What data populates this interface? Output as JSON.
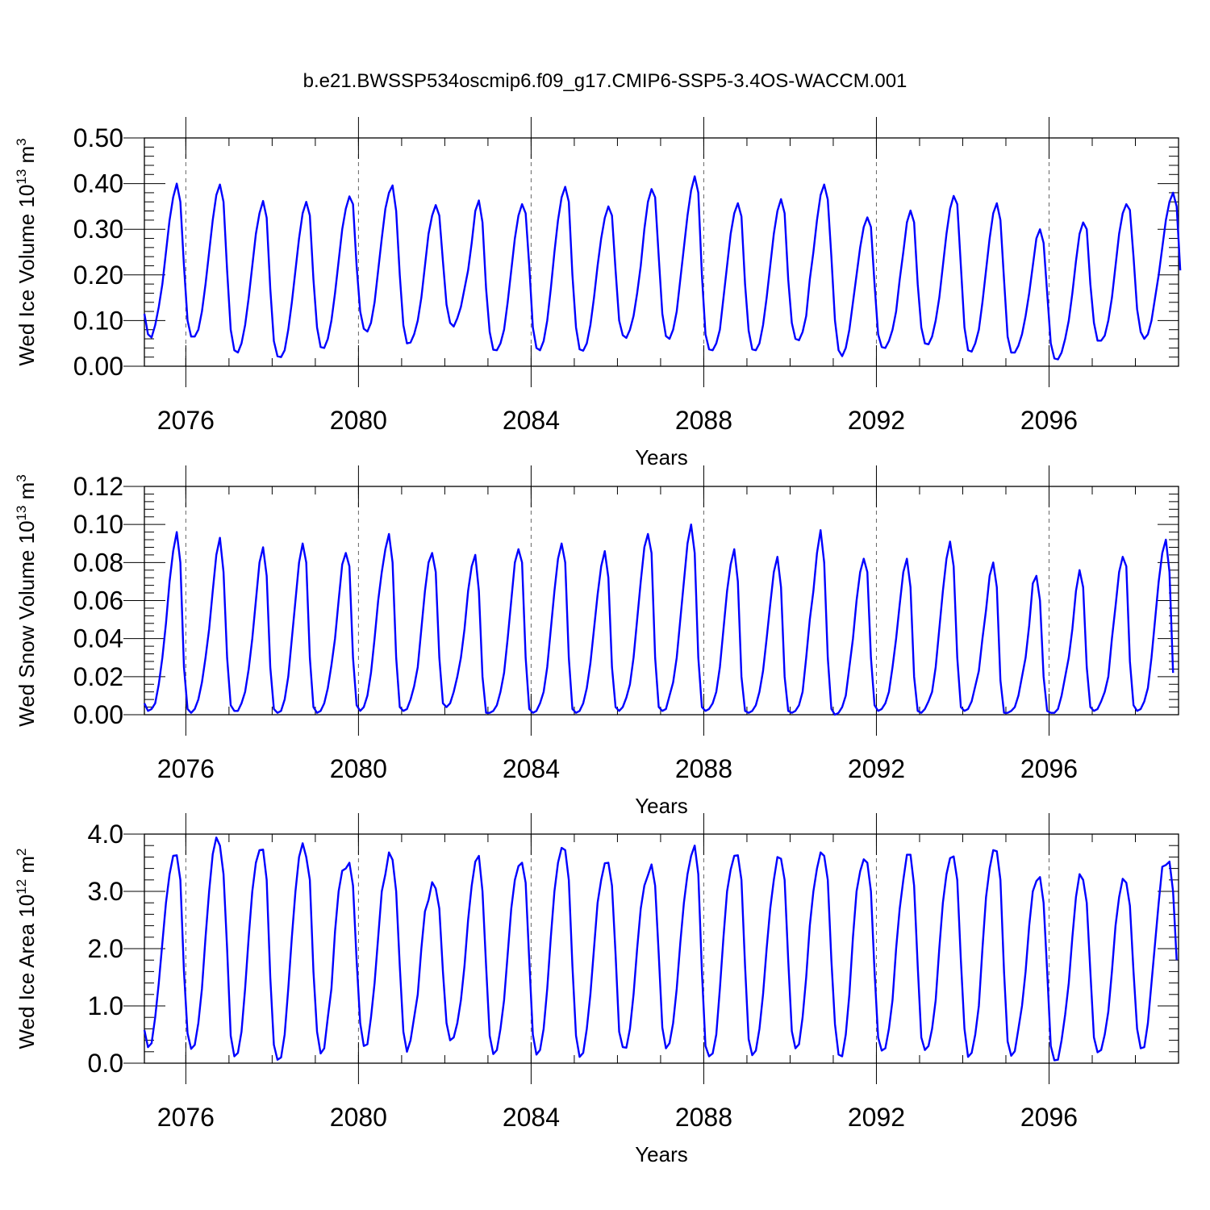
{
  "title": "b.e21.BWSSP534oscmip6.f09_g17.CMIP6-SSP5-3.4OS-WACCM.001",
  "colors": {
    "line": "#0000ff",
    "axis": "#000000",
    "refline": "#666666",
    "background": "#ffffff"
  },
  "chart_data": [
    {
      "type": "line",
      "ylabel": {
        "prefix": "Wed Ice Volume 10",
        "exponent": "13",
        "unit": " m",
        "unit_exponent": "3"
      },
      "xlabel": "Years",
      "xlim": [
        2075.04,
        2099.0
      ],
      "ylim": [
        0.0,
        0.5
      ],
      "x_ticks": [
        2076,
        2080,
        2084,
        2088,
        2092,
        2096
      ],
      "y_ticks": [
        "0.00",
        "0.10",
        "0.20",
        "0.30",
        "0.40",
        "0.50"
      ],
      "y_tick_values": [
        0,
        0.1,
        0.2,
        0.3,
        0.4,
        0.5
      ],
      "grid": "dashed vertical lines at labeled years",
      "series": [
        {
          "x_start": 2075.04,
          "x_step_months": 1,
          "values": [
            0.115,
            0.07,
            0.063,
            0.09,
            0.13,
            0.18,
            0.25,
            0.32,
            0.37,
            0.4,
            0.36,
            0.22,
            0.1,
            0.065,
            0.065,
            0.08,
            0.12,
            0.18,
            0.25,
            0.32,
            0.375,
            0.398,
            0.36,
            0.21,
            0.08,
            0.035,
            0.03,
            0.05,
            0.09,
            0.15,
            0.22,
            0.29,
            0.335,
            0.362,
            0.325,
            0.17,
            0.055,
            0.022,
            0.02,
            0.035,
            0.08,
            0.14,
            0.21,
            0.28,
            0.335,
            0.36,
            0.33,
            0.19,
            0.085,
            0.042,
            0.04,
            0.06,
            0.1,
            0.16,
            0.23,
            0.3,
            0.345,
            0.372,
            0.355,
            0.22,
            0.12,
            0.082,
            0.076,
            0.095,
            0.14,
            0.21,
            0.28,
            0.345,
            0.38,
            0.396,
            0.34,
            0.2,
            0.09,
            0.05,
            0.052,
            0.07,
            0.1,
            0.15,
            0.22,
            0.29,
            0.33,
            0.353,
            0.33,
            0.23,
            0.135,
            0.095,
            0.087,
            0.105,
            0.13,
            0.17,
            0.21,
            0.27,
            0.34,
            0.363,
            0.315,
            0.17,
            0.075,
            0.036,
            0.035,
            0.05,
            0.08,
            0.14,
            0.21,
            0.28,
            0.33,
            0.355,
            0.335,
            0.22,
            0.085,
            0.04,
            0.035,
            0.055,
            0.1,
            0.17,
            0.25,
            0.32,
            0.37,
            0.393,
            0.36,
            0.2,
            0.085,
            0.037,
            0.034,
            0.05,
            0.09,
            0.15,
            0.22,
            0.28,
            0.325,
            0.35,
            0.33,
            0.21,
            0.1,
            0.068,
            0.062,
            0.08,
            0.11,
            0.16,
            0.22,
            0.3,
            0.36,
            0.388,
            0.37,
            0.24,
            0.115,
            0.066,
            0.06,
            0.08,
            0.12,
            0.19,
            0.26,
            0.33,
            0.385,
            0.416,
            0.38,
            0.2,
            0.07,
            0.037,
            0.035,
            0.05,
            0.08,
            0.15,
            0.22,
            0.29,
            0.335,
            0.357,
            0.328,
            0.18,
            0.078,
            0.037,
            0.035,
            0.05,
            0.09,
            0.15,
            0.22,
            0.29,
            0.34,
            0.366,
            0.335,
            0.19,
            0.095,
            0.06,
            0.057,
            0.075,
            0.11,
            0.19,
            0.25,
            0.32,
            0.375,
            0.398,
            0.365,
            0.24,
            0.1,
            0.035,
            0.022,
            0.04,
            0.08,
            0.14,
            0.2,
            0.26,
            0.305,
            0.326,
            0.305,
            0.18,
            0.07,
            0.042,
            0.04,
            0.055,
            0.08,
            0.12,
            0.19,
            0.25,
            0.315,
            0.341,
            0.315,
            0.18,
            0.085,
            0.05,
            0.048,
            0.065,
            0.1,
            0.15,
            0.22,
            0.29,
            0.345,
            0.373,
            0.355,
            0.22,
            0.085,
            0.035,
            0.032,
            0.05,
            0.08,
            0.14,
            0.21,
            0.28,
            0.335,
            0.357,
            0.32,
            0.19,
            0.065,
            0.03,
            0.03,
            0.045,
            0.07,
            0.11,
            0.16,
            0.22,
            0.28,
            0.3,
            0.27,
            0.16,
            0.05,
            0.017,
            0.015,
            0.03,
            0.06,
            0.1,
            0.16,
            0.23,
            0.29,
            0.315,
            0.3,
            0.18,
            0.095,
            0.056,
            0.056,
            0.067,
            0.1,
            0.15,
            0.22,
            0.29,
            0.335,
            0.355,
            0.342,
            0.24,
            0.125,
            0.075,
            0.06,
            0.07,
            0.1,
            0.15,
            0.2,
            0.26,
            0.32,
            0.36,
            0.38,
            0.35,
            0.21
          ]
        }
      ]
    },
    {
      "type": "line",
      "ylabel": {
        "prefix": "Wed Snow Volume 10",
        "exponent": "13",
        "unit": " m",
        "unit_exponent": "3"
      },
      "xlabel": "Years",
      "xlim": [
        2075.04,
        2099.0
      ],
      "ylim": [
        0.0,
        0.12
      ],
      "x_ticks": [
        2076,
        2080,
        2084,
        2088,
        2092,
        2096
      ],
      "y_ticks": [
        "0.00",
        "0.02",
        "0.04",
        "0.06",
        "0.08",
        "0.10",
        "0.12"
      ],
      "y_tick_values": [
        0,
        0.02,
        0.04,
        0.06,
        0.08,
        0.1,
        0.12
      ],
      "grid": "dashed vertical lines at labeled years",
      "series": [
        {
          "x_start": 2075.04,
          "x_step_months": 1,
          "values": [
            0.006,
            0.002,
            0.003,
            0.006,
            0.016,
            0.03,
            0.048,
            0.07,
            0.086,
            0.096,
            0.08,
            0.025,
            0.003,
            0.001,
            0.003,
            0.008,
            0.017,
            0.03,
            0.045,
            0.065,
            0.084,
            0.093,
            0.075,
            0.03,
            0.005,
            0.002,
            0.002,
            0.006,
            0.012,
            0.024,
            0.04,
            0.06,
            0.08,
            0.088,
            0.073,
            0.025,
            0.003,
            0.001,
            0.002,
            0.008,
            0.02,
            0.04,
            0.06,
            0.08,
            0.09,
            0.08,
            0.03,
            0.004,
            0.001,
            0.002,
            0.006,
            0.014,
            0.026,
            0.04,
            0.06,
            0.079,
            0.085,
            0.078,
            0.03,
            0.005,
            0.002,
            0.004,
            0.01,
            0.022,
            0.04,
            0.06,
            0.075,
            0.087,
            0.095,
            0.08,
            0.03,
            0.004,
            0.002,
            0.003,
            0.008,
            0.015,
            0.025,
            0.045,
            0.065,
            0.08,
            0.085,
            0.075,
            0.03,
            0.006,
            0.004,
            0.006,
            0.012,
            0.02,
            0.03,
            0.045,
            0.065,
            0.078,
            0.084,
            0.065,
            0.02,
            0.001,
            0.001,
            0.002,
            0.005,
            0.012,
            0.022,
            0.04,
            0.06,
            0.08,
            0.087,
            0.08,
            0.03,
            0.003,
            0.001,
            0.002,
            0.006,
            0.012,
            0.025,
            0.045,
            0.065,
            0.082,
            0.09,
            0.08,
            0.03,
            0.003,
            0.001,
            0.002,
            0.006,
            0.014,
            0.027,
            0.045,
            0.063,
            0.078,
            0.086,
            0.072,
            0.025,
            0.004,
            0.002,
            0.004,
            0.009,
            0.016,
            0.03,
            0.05,
            0.07,
            0.088,
            0.095,
            0.085,
            0.03,
            0.004,
            0.002,
            0.003,
            0.01,
            0.017,
            0.03,
            0.05,
            0.07,
            0.09,
            0.1,
            0.085,
            0.03,
            0.004,
            0.002,
            0.003,
            0.006,
            0.012,
            0.025,
            0.045,
            0.065,
            0.079,
            0.087,
            0.07,
            0.02,
            0.002,
            0.001,
            0.002,
            0.005,
            0.012,
            0.023,
            0.04,
            0.058,
            0.075,
            0.083,
            0.067,
            0.02,
            0.002,
            0.001,
            0.002,
            0.005,
            0.012,
            0.03,
            0.05,
            0.065,
            0.085,
            0.097,
            0.08,
            0.03,
            0.003,
            0.0,
            0.001,
            0.004,
            0.01,
            0.025,
            0.04,
            0.06,
            0.075,
            0.082,
            0.075,
            0.03,
            0.005,
            0.002,
            0.003,
            0.006,
            0.012,
            0.025,
            0.04,
            0.058,
            0.075,
            0.082,
            0.067,
            0.02,
            0.002,
            0.001,
            0.003,
            0.007,
            0.012,
            0.025,
            0.045,
            0.065,
            0.082,
            0.091,
            0.078,
            0.03,
            0.004,
            0.002,
            0.003,
            0.007,
            0.015,
            0.023,
            0.04,
            0.055,
            0.073,
            0.08,
            0.067,
            0.018,
            0.001,
            0.001,
            0.002,
            0.004,
            0.01,
            0.02,
            0.03,
            0.047,
            0.069,
            0.073,
            0.06,
            0.02,
            0.002,
            0.001,
            0.001,
            0.003,
            0.01,
            0.02,
            0.03,
            0.045,
            0.065,
            0.076,
            0.067,
            0.025,
            0.004,
            0.002,
            0.003,
            0.007,
            0.012,
            0.02,
            0.04,
            0.057,
            0.075,
            0.083,
            0.078,
            0.028,
            0.005,
            0.002,
            0.003,
            0.007,
            0.014,
            0.03,
            0.05,
            0.07,
            0.085,
            0.092,
            0.075,
            0.022
          ]
        }
      ]
    },
    {
      "type": "line",
      "ylabel": {
        "prefix": "Wed Ice Area 10",
        "exponent": "12",
        "unit": " m",
        "unit_exponent": "2"
      },
      "xlabel": "Years",
      "xlim": [
        2075.04,
        2099.0
      ],
      "ylim": [
        0.0,
        4.0
      ],
      "x_ticks": [
        2076,
        2080,
        2084,
        2088,
        2092,
        2096
      ],
      "y_ticks": [
        "0.0",
        "1.0",
        "2.0",
        "3.0",
        "4.0"
      ],
      "y_tick_values": [
        0,
        1,
        2,
        3,
        4
      ],
      "grid": "dashed vertical lines at labeled years",
      "series": [
        {
          "x_start": 2075.04,
          "x_step_months": 1,
          "values": [
            0.58,
            0.28,
            0.35,
            0.8,
            1.4,
            2.1,
            2.8,
            3.3,
            3.62,
            3.63,
            3.2,
            1.6,
            0.52,
            0.25,
            0.32,
            0.7,
            1.3,
            2.2,
            3.0,
            3.65,
            3.94,
            3.8,
            3.3,
            2.0,
            0.48,
            0.12,
            0.18,
            0.55,
            1.3,
            2.2,
            3.0,
            3.5,
            3.72,
            3.73,
            3.2,
            1.5,
            0.32,
            0.06,
            0.1,
            0.5,
            1.3,
            2.2,
            3.0,
            3.6,
            3.84,
            3.6,
            3.2,
            1.6,
            0.55,
            0.17,
            0.26,
            0.8,
            1.3,
            2.3,
            3.0,
            3.36,
            3.4,
            3.5,
            3.1,
            1.8,
            0.7,
            0.3,
            0.33,
            0.8,
            1.4,
            2.2,
            3.0,
            3.3,
            3.68,
            3.55,
            3.0,
            1.7,
            0.55,
            0.2,
            0.4,
            0.8,
            1.2,
            2.0,
            2.65,
            2.85,
            3.16,
            3.05,
            2.7,
            1.6,
            0.7,
            0.4,
            0.45,
            0.7,
            1.1,
            1.7,
            2.5,
            3.1,
            3.52,
            3.62,
            3.0,
            1.7,
            0.48,
            0.16,
            0.23,
            0.6,
            1.1,
            1.9,
            2.7,
            3.2,
            3.44,
            3.5,
            3.15,
            1.8,
            0.5,
            0.15,
            0.23,
            0.6,
            1.3,
            2.2,
            3.0,
            3.5,
            3.76,
            3.72,
            3.2,
            1.7,
            0.48,
            0.11,
            0.18,
            0.6,
            1.2,
            2.0,
            2.8,
            3.2,
            3.49,
            3.5,
            3.1,
            1.9,
            0.55,
            0.28,
            0.27,
            0.6,
            1.2,
            2.0,
            2.7,
            3.1,
            3.28,
            3.47,
            3.1,
            1.9,
            0.62,
            0.26,
            0.35,
            0.7,
            1.3,
            2.1,
            2.8,
            3.3,
            3.62,
            3.8,
            3.3,
            1.6,
            0.3,
            0.12,
            0.17,
            0.5,
            1.3,
            2.2,
            3.0,
            3.38,
            3.62,
            3.63,
            3.2,
            1.7,
            0.42,
            0.14,
            0.22,
            0.6,
            1.2,
            2.0,
            2.7,
            3.2,
            3.6,
            3.57,
            3.2,
            1.8,
            0.56,
            0.26,
            0.33,
            0.8,
            1.5,
            2.4,
            3.0,
            3.4,
            3.68,
            3.62,
            3.2,
            1.8,
            0.68,
            0.15,
            0.12,
            0.5,
            1.2,
            2.2,
            3.0,
            3.35,
            3.56,
            3.5,
            3.0,
            1.6,
            0.45,
            0.22,
            0.26,
            0.6,
            1.1,
            2.0,
            2.7,
            3.2,
            3.64,
            3.64,
            3.1,
            1.7,
            0.45,
            0.23,
            0.3,
            0.6,
            1.1,
            2.0,
            2.8,
            3.3,
            3.58,
            3.61,
            3.2,
            1.8,
            0.6,
            0.11,
            0.18,
            0.5,
            1.0,
            2.0,
            2.9,
            3.4,
            3.72,
            3.7,
            3.2,
            1.6,
            0.38,
            0.13,
            0.21,
            0.6,
            1.0,
            1.6,
            2.4,
            3.0,
            3.18,
            3.25,
            2.8,
            1.6,
            0.3,
            0.05,
            0.06,
            0.4,
            0.85,
            1.4,
            2.2,
            2.9,
            3.3,
            3.2,
            2.8,
            1.6,
            0.45,
            0.19,
            0.23,
            0.5,
            0.9,
            1.6,
            2.4,
            2.9,
            3.22,
            3.15,
            2.75,
            1.6,
            0.6,
            0.26,
            0.28,
            0.7,
            1.4,
            2.1,
            2.8,
            3.43,
            3.46,
            3.52,
            3.0,
            1.8
          ]
        }
      ]
    }
  ]
}
